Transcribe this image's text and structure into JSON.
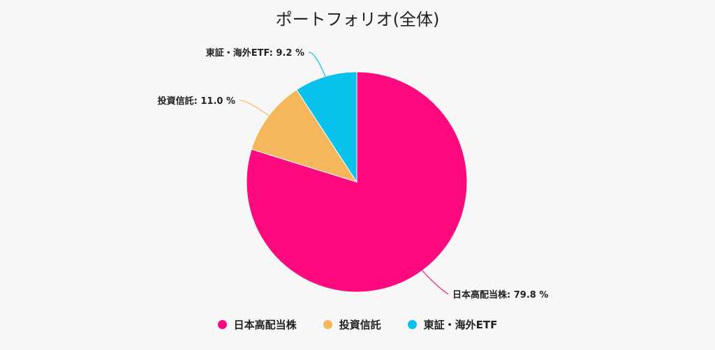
{
  "chart_data": {
    "type": "pie",
    "title": "ポートフォリオ(全体)",
    "series": [
      {
        "name": "日本高配当株",
        "value": 79.8,
        "color": "#ff0a7f"
      },
      {
        "name": "投資信託",
        "value": 11.0,
        "color": "#f5b75c"
      },
      {
        "name": "東証・海外ETF",
        "value": 9.2,
        "color": "#08c2ec"
      }
    ],
    "data_labels": [
      "日本高配当株: 79.8 %",
      "投資信託: 11.0 %",
      "東証・海外ETF: 9.2 %"
    ],
    "legend_position": "bottom"
  },
  "legend": {
    "items": [
      "日本高配当株",
      "投資信託",
      "東証・海外ETF"
    ]
  }
}
